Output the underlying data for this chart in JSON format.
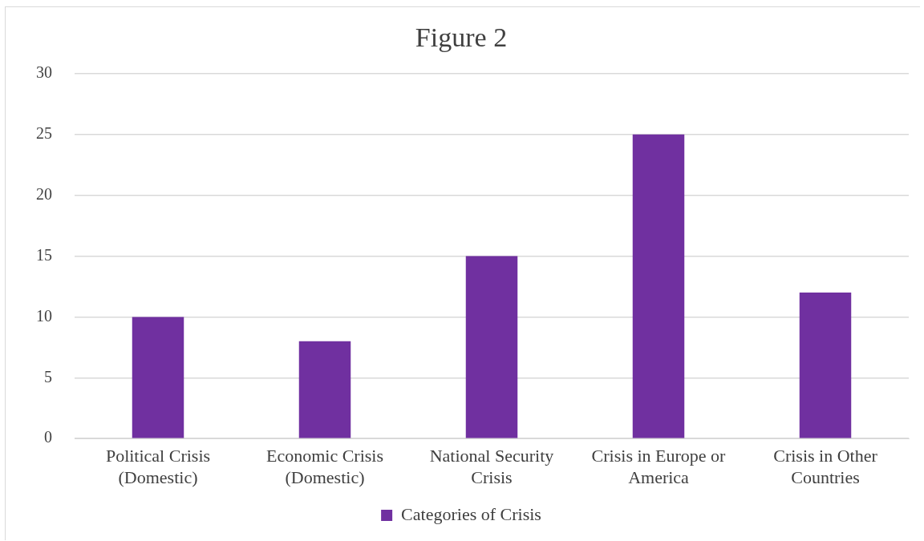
{
  "chart_data": {
    "type": "bar",
    "title": "Figure 2",
    "categories": [
      "Political Crisis (Domestic)",
      "Economic Crisis (Domestic)",
      "National Security Crisis",
      "Crisis in Europe or America",
      "Crisis in Other Countries"
    ],
    "series": [
      {
        "name": "Categories of Crisis",
        "color": "#7030a0",
        "values": [
          10,
          8,
          15,
          25,
          12
        ]
      }
    ],
    "ylim": [
      0,
      30
    ],
    "yticks": [
      0,
      5,
      10,
      15,
      20,
      25,
      30
    ],
    "grid": "y",
    "legend": "bottom"
  }
}
